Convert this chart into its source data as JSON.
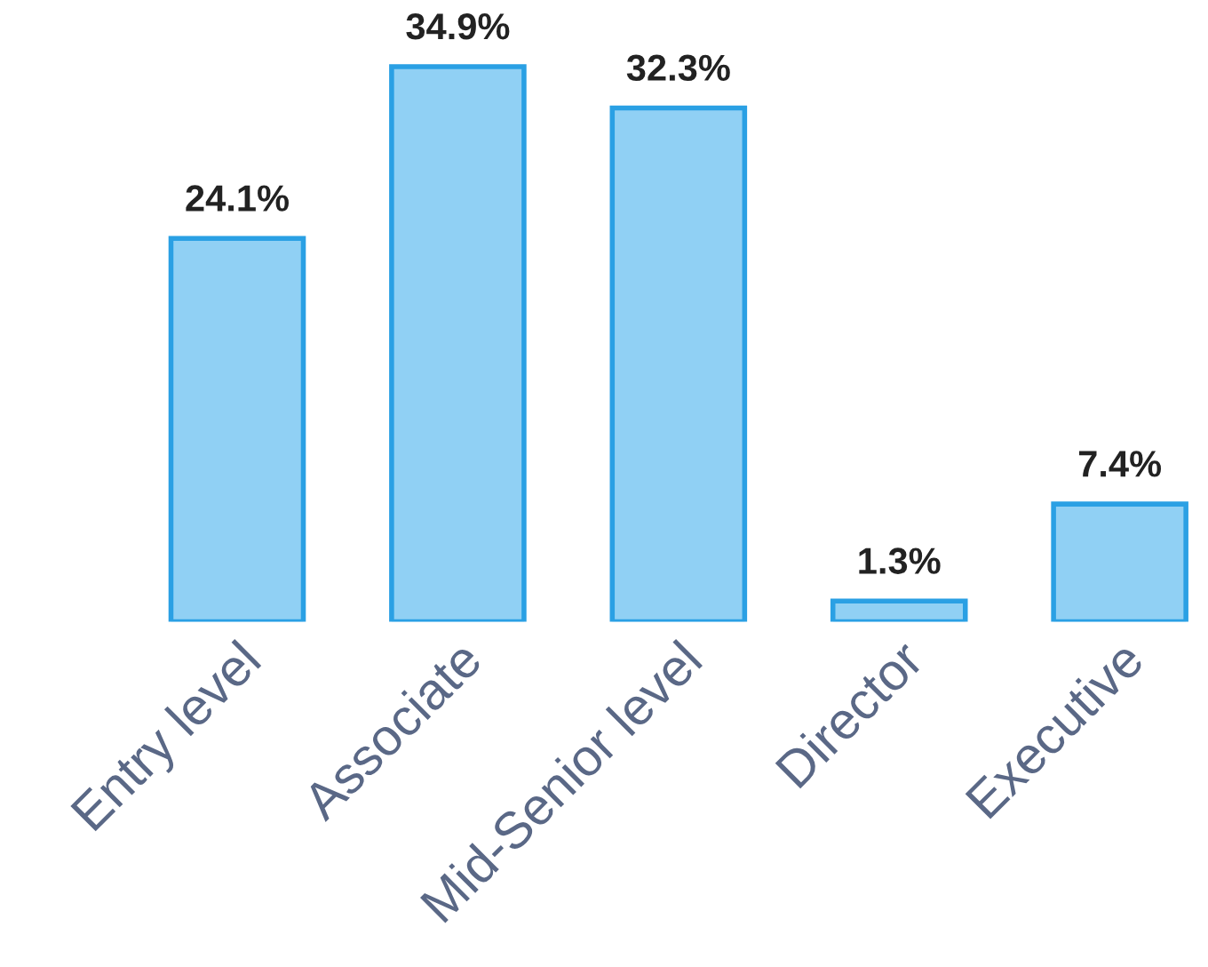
{
  "chart_data": {
    "type": "bar",
    "categories": [
      "Entry level",
      "Associate",
      "Mid-Senior level",
      "Director",
      "Executive"
    ],
    "values": [
      24.1,
      34.9,
      32.3,
      1.3,
      7.4
    ],
    "value_labels": [
      "24.1%",
      "34.9%",
      "32.3%",
      "1.3%",
      "7.4%"
    ],
    "color": "#90d0f4",
    "grid": false,
    "tick_labels": "x"
  }
}
